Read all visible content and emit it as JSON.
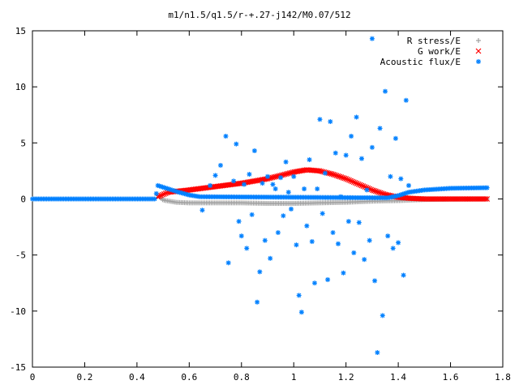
{
  "chart_data": {
    "type": "scatter",
    "title": "m1/n1.5/q1.5/r-+.27-j142/M0.07/512",
    "xlabel": "",
    "ylabel": "",
    "xlim": [
      0,
      1.8
    ],
    "ylim": [
      -15,
      15
    ],
    "xticks": [
      "0",
      "0.2",
      "0.4",
      "0.6",
      "0.8",
      "1",
      "1.2",
      "1.4",
      "1.6",
      "1.8"
    ],
    "yticks": [
      "15",
      "10",
      "5",
      "0",
      "-5",
      "-10",
      "-15"
    ],
    "legend_position": "top-right",
    "grid": false,
    "series": [
      {
        "name": "R stress/E",
        "color": "#a0a0a0",
        "marker": "plus",
        "curve": [
          [
            0.48,
            0.3
          ],
          [
            0.5,
            -0.1
          ],
          [
            0.55,
            -0.3
          ],
          [
            0.6,
            -0.35
          ],
          [
            0.7,
            -0.35
          ],
          [
            0.8,
            -0.35
          ],
          [
            0.9,
            -0.4
          ],
          [
            1.0,
            -0.4
          ],
          [
            1.1,
            -0.35
          ],
          [
            1.2,
            -0.3
          ],
          [
            1.3,
            -0.2
          ],
          [
            1.4,
            -0.15
          ],
          [
            1.5,
            -0.05
          ],
          [
            1.6,
            -0.02
          ],
          [
            1.74,
            0.0
          ]
        ]
      },
      {
        "name": "G work/E",
        "color": "#ff0000",
        "marker": "cross",
        "curve": [
          [
            0.48,
            0.2
          ],
          [
            0.52,
            0.6
          ],
          [
            0.6,
            0.8
          ],
          [
            0.7,
            1.1
          ],
          [
            0.8,
            1.4
          ],
          [
            0.9,
            1.8
          ],
          [
            0.95,
            2.1
          ],
          [
            1.0,
            2.4
          ],
          [
            1.05,
            2.6
          ],
          [
            1.1,
            2.5
          ],
          [
            1.15,
            2.2
          ],
          [
            1.2,
            1.8
          ],
          [
            1.25,
            1.3
          ],
          [
            1.3,
            0.8
          ],
          [
            1.35,
            0.4
          ],
          [
            1.4,
            0.15
          ],
          [
            1.45,
            0.05
          ],
          [
            1.5,
            0.0
          ],
          [
            1.74,
            0.0
          ]
        ]
      },
      {
        "name": "Acoustic flux/E",
        "color": "#0080ff",
        "marker": "star",
        "curve": [
          [
            0.0,
            0.0
          ],
          [
            0.47,
            0.0
          ],
          [
            0.48,
            1.2
          ],
          [
            0.52,
            0.9
          ],
          [
            0.56,
            0.6
          ],
          [
            0.6,
            0.35
          ],
          [
            0.64,
            0.2
          ],
          [
            1.36,
            0.1
          ],
          [
            1.4,
            0.3
          ],
          [
            1.44,
            0.6
          ],
          [
            1.5,
            0.8
          ],
          [
            1.6,
            0.95
          ],
          [
            1.74,
            1.0
          ]
        ],
        "scatter": [
          [
            0.65,
            -1.0
          ],
          [
            0.68,
            1.2
          ],
          [
            0.7,
            2.1
          ],
          [
            0.72,
            3.0
          ],
          [
            0.74,
            5.6
          ],
          [
            0.75,
            -5.7
          ],
          [
            0.77,
            1.6
          ],
          [
            0.78,
            4.9
          ],
          [
            0.79,
            -2.0
          ],
          [
            0.8,
            -3.3
          ],
          [
            0.81,
            1.3
          ],
          [
            0.82,
            -4.4
          ],
          [
            0.83,
            2.2
          ],
          [
            0.84,
            -1.4
          ],
          [
            0.85,
            4.3
          ],
          [
            0.86,
            -9.2
          ],
          [
            0.87,
            -6.5
          ],
          [
            0.88,
            1.4
          ],
          [
            0.89,
            -3.7
          ],
          [
            0.9,
            2.0
          ],
          [
            0.91,
            -5.3
          ],
          [
            0.92,
            1.3
          ],
          [
            0.93,
            0.9
          ],
          [
            0.94,
            -3.0
          ],
          [
            0.95,
            1.9
          ],
          [
            0.96,
            -1.5
          ],
          [
            0.97,
            3.3
          ],
          [
            0.98,
            0.6
          ],
          [
            0.99,
            -0.9
          ],
          [
            1.0,
            2.0
          ],
          [
            1.01,
            -4.1
          ],
          [
            1.02,
            -8.6
          ],
          [
            1.03,
            -10.1
          ],
          [
            1.04,
            0.9
          ],
          [
            1.05,
            -2.4
          ],
          [
            1.06,
            3.5
          ],
          [
            1.07,
            -3.8
          ],
          [
            1.08,
            -7.5
          ],
          [
            1.09,
            0.9
          ],
          [
            1.1,
            7.1
          ],
          [
            1.11,
            -1.3
          ],
          [
            1.12,
            2.3
          ],
          [
            1.13,
            -7.2
          ],
          [
            1.14,
            6.9
          ],
          [
            1.15,
            -3.0
          ],
          [
            1.16,
            4.1
          ],
          [
            1.17,
            -4.0
          ],
          [
            1.18,
            0.2
          ],
          [
            1.19,
            -6.6
          ],
          [
            1.2,
            3.9
          ],
          [
            1.21,
            -2.0
          ],
          [
            1.22,
            5.6
          ],
          [
            1.23,
            -4.8
          ],
          [
            1.24,
            7.3
          ],
          [
            1.25,
            -2.1
          ],
          [
            1.26,
            3.6
          ],
          [
            1.27,
            -5.4
          ],
          [
            1.28,
            0.8
          ],
          [
            1.29,
            -3.7
          ],
          [
            1.3,
            4.6
          ],
          [
            1.31,
            -7.3
          ],
          [
            1.32,
            -13.7
          ],
          [
            1.33,
            6.3
          ],
          [
            1.34,
            -10.4
          ],
          [
            1.35,
            9.6
          ],
          [
            1.36,
            -3.3
          ],
          [
            1.37,
            2.0
          ],
          [
            1.38,
            -4.4
          ],
          [
            1.39,
            5.4
          ],
          [
            1.4,
            -3.9
          ],
          [
            1.41,
            1.8
          ],
          [
            1.42,
            -6.8
          ],
          [
            1.43,
            8.8
          ],
          [
            1.44,
            1.2
          ]
        ]
      }
    ]
  }
}
